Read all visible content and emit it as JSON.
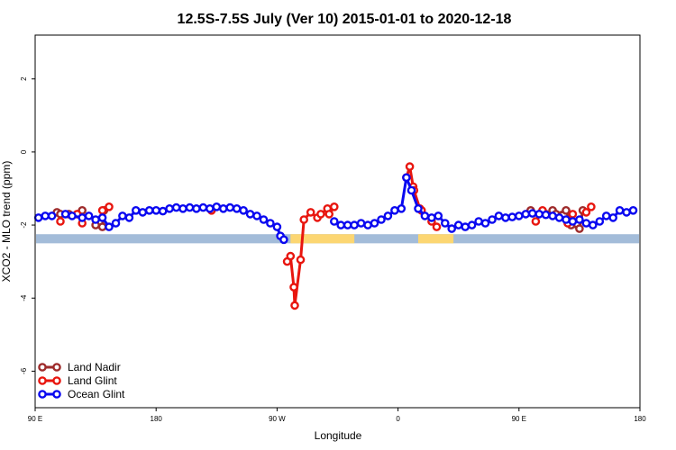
{
  "chart_data": {
    "type": "line",
    "title": "12.5S-7.5S July (Ver 10)   2015-01-01 to 2020-12-18",
    "xlabel": "Longitude",
    "ylabel": "XCO2 - MLO trend (ppm)",
    "xlim": [
      90,
      450
    ],
    "ylim": [
      -7,
      3.2
    ],
    "xticks": [
      {
        "value": 90,
        "label": "90 E"
      },
      {
        "value": 162,
        "label": "180"
      },
      {
        "value": 234,
        "label": "90 W"
      },
      {
        "value": 306,
        "label": "0"
      },
      {
        "value": 378,
        "label": "90 E"
      },
      {
        "value": 450,
        "label": "180"
      }
    ],
    "yticks": [
      {
        "value": 2,
        "label": "2"
      },
      {
        "value": 0,
        "label": "0"
      },
      {
        "value": -2,
        "label": "-2"
      },
      {
        "value": -4,
        "label": "-4"
      },
      {
        "value": -6,
        "label": "-6"
      }
    ],
    "legend_position": "bottom-left",
    "surface_bar": {
      "y_range": [
        -2.5,
        -2.25
      ],
      "ocean_color": "#a3bcd9",
      "land_color": "#fcd672",
      "land_spans": [
        [
          242,
          280
        ],
        [
          318,
          339
        ]
      ]
    },
    "series": [
      {
        "name": "Land Nadir",
        "color": "#9e2b2b",
        "points": [
          [
            103,
            -1.65
          ],
          [
            105,
            -1.7
          ],
          [
            110,
            -1.7
          ],
          [
            118,
            -1.6
          ],
          [
            126,
            -2.0
          ],
          [
            130,
            -2.05
          ],
          [
            131,
            -1.6
          ],
          [
            385,
            -1.6
          ],
          [
            394,
            -1.7
          ],
          [
            398,
            -1.6
          ],
          [
            400,
            -1.7
          ],
          [
            406,
            -1.6
          ],
          [
            409,
            -2.0
          ],
          [
            414,
            -2.1
          ],
          [
            416,
            -1.6
          ]
        ]
      },
      {
        "name": "Land Glint",
        "color": "#e8160f",
        "points": [
          [
            105,
            -1.9
          ],
          [
            115,
            -1.7
          ],
          [
            118,
            -1.95
          ],
          [
            130,
            -1.6
          ],
          [
            134,
            -1.5
          ],
          [
            195,
            -1.6
          ],
          [
            240,
            -3.0
          ],
          [
            242,
            -2.85
          ],
          [
            244,
            -3.7
          ],
          [
            244.5,
            -4.2
          ],
          [
            248,
            -2.95
          ],
          [
            250,
            -1.85
          ],
          [
            254,
            -1.65
          ],
          [
            258,
            -1.8
          ],
          [
            260,
            -1.7
          ],
          [
            264,
            -1.55
          ],
          [
            265,
            -1.7
          ],
          [
            268,
            -1.5
          ],
          [
            311,
            -0.7
          ],
          [
            313,
            -0.4
          ],
          [
            315,
            -0.95
          ],
          [
            315.5,
            -1.05
          ],
          [
            319,
            -1.55
          ],
          [
            320,
            -1.6
          ],
          [
            326,
            -1.9
          ],
          [
            329,
            -2.05
          ],
          [
            388,
            -1.9
          ],
          [
            392,
            -1.6
          ],
          [
            407,
            -1.95
          ],
          [
            410,
            -1.7
          ],
          [
            418,
            -1.65
          ],
          [
            421,
            -1.5
          ]
        ]
      },
      {
        "name": "Ocean Glint",
        "color": "#0a08f0",
        "points": [
          [
            92,
            -1.8
          ],
          [
            96,
            -1.75
          ],
          [
            100,
            -1.75
          ],
          [
            108,
            -1.7
          ],
          [
            112,
            -1.75
          ],
          [
            118,
            -1.8
          ],
          [
            122,
            -1.75
          ],
          [
            126,
            -1.85
          ],
          [
            130,
            -1.8
          ],
          [
            134,
            -2.05
          ],
          [
            138,
            -1.95
          ],
          [
            142,
            -1.75
          ],
          [
            146,
            -1.8
          ],
          [
            150,
            -1.6
          ],
          [
            154,
            -1.65
          ],
          [
            158,
            -1.6
          ],
          [
            162,
            -1.6
          ],
          [
            166,
            -1.62
          ],
          [
            170,
            -1.55
          ],
          [
            174,
            -1.52
          ],
          [
            178,
            -1.55
          ],
          [
            182,
            -1.52
          ],
          [
            186,
            -1.55
          ],
          [
            190,
            -1.52
          ],
          [
            194,
            -1.55
          ],
          [
            198,
            -1.5
          ],
          [
            202,
            -1.55
          ],
          [
            206,
            -1.52
          ],
          [
            210,
            -1.55
          ],
          [
            214,
            -1.6
          ],
          [
            218,
            -1.7
          ],
          [
            222,
            -1.75
          ],
          [
            226,
            -1.85
          ],
          [
            230,
            -1.95
          ],
          [
            234,
            -2.05
          ],
          [
            236,
            -2.3
          ],
          [
            238,
            -2.4
          ],
          [
            268,
            -1.9
          ],
          [
            272,
            -2.0
          ],
          [
            276,
            -2.0
          ],
          [
            280,
            -2.0
          ],
          [
            284,
            -1.95
          ],
          [
            288,
            -2.0
          ],
          [
            292,
            -1.95
          ],
          [
            296,
            -1.85
          ],
          [
            300,
            -1.75
          ],
          [
            304,
            -1.6
          ],
          [
            308,
            -1.55
          ],
          [
            311,
            -0.7
          ],
          [
            314,
            -1.05
          ],
          [
            318,
            -1.55
          ],
          [
            322,
            -1.75
          ],
          [
            326,
            -1.8
          ],
          [
            330,
            -1.75
          ],
          [
            334,
            -1.95
          ],
          [
            338,
            -2.1
          ],
          [
            342,
            -2.0
          ],
          [
            346,
            -2.05
          ],
          [
            350,
            -2.0
          ],
          [
            354,
            -1.9
          ],
          [
            358,
            -1.95
          ],
          [
            362,
            -1.85
          ],
          [
            366,
            -1.75
          ],
          [
            370,
            -1.8
          ],
          [
            374,
            -1.78
          ],
          [
            378,
            -1.75
          ],
          [
            382,
            -1.7
          ],
          [
            386,
            -1.68
          ],
          [
            390,
            -1.7
          ],
          [
            394,
            -1.72
          ],
          [
            398,
            -1.75
          ],
          [
            402,
            -1.8
          ],
          [
            406,
            -1.85
          ],
          [
            410,
            -1.9
          ],
          [
            414,
            -1.85
          ],
          [
            418,
            -1.95
          ],
          [
            422,
            -2.0
          ],
          [
            426,
            -1.9
          ],
          [
            430,
            -1.75
          ],
          [
            434,
            -1.8
          ],
          [
            438,
            -1.6
          ],
          [
            442,
            -1.65
          ],
          [
            446,
            -1.6
          ]
        ]
      }
    ]
  }
}
